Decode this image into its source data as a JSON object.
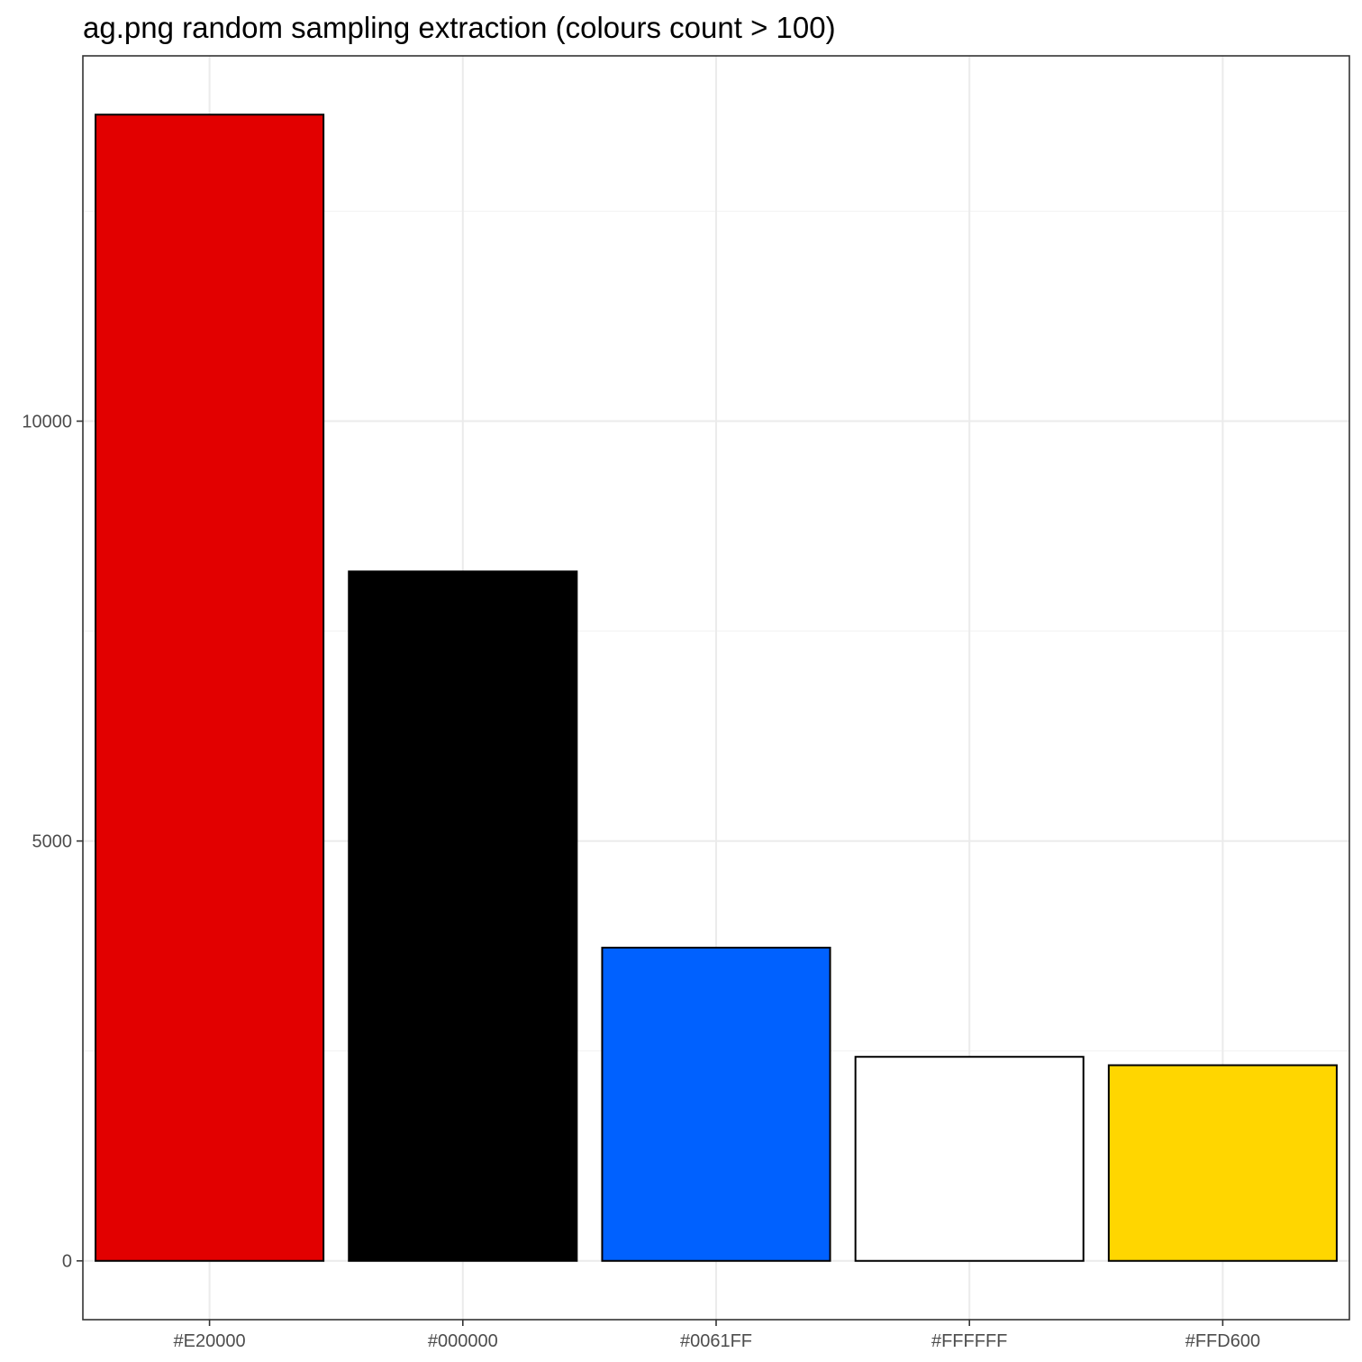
{
  "chart_data": {
    "type": "bar",
    "title": "ag.png random sampling extraction (colours count > 100)",
    "xlabel": "",
    "ylabel": "",
    "categories": [
      "#E20000",
      "#000000",
      "#0061FF",
      "#FFFFFF",
      "#FFD600"
    ],
    "values": [
      13650,
      8210,
      3730,
      2430,
      2330
    ],
    "colors": [
      "#E20000",
      "#000000",
      "#0061FF",
      "#FFFFFF",
      "#FFD600"
    ],
    "ylim": [
      -700,
      14350
    ],
    "yticks": [
      0,
      5000,
      10000
    ],
    "ytick_labels": [
      "0",
      "5000",
      "10000"
    ],
    "grid": true,
    "legend": "none"
  }
}
